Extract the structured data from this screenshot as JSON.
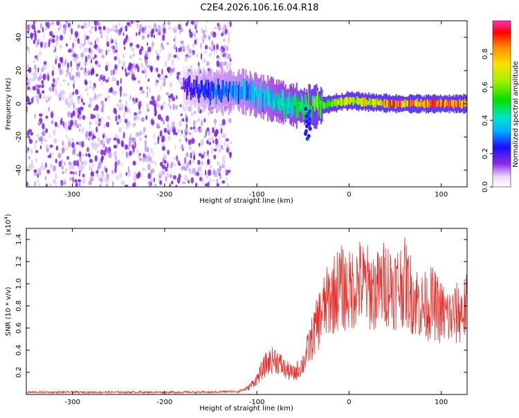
{
  "page_title": "C2E4.2026.106.16.04.R18",
  "colors": {
    "signal_line": "#e8302a",
    "spectrogram_noise": "#7a2be0",
    "axis": "#000000"
  },
  "chart_data": [
    {
      "type": "heatmap",
      "title": "C2E4.2026.106.16.04.R18",
      "xlabel": "Height of straight line (km)",
      "ylabel": "Frequency (Hz)",
      "xlim": [
        -350,
        128
      ],
      "ylim": [
        -50,
        50
      ],
      "xticks": [
        -300,
        -200,
        -100,
        0,
        100
      ],
      "yticks": [
        -40,
        -20,
        0,
        20,
        40
      ],
      "grid": false,
      "description_of_ridge": [
        {
          "height_km": -180,
          "frequency_hz": 10,
          "amplitude": 0.2
        },
        {
          "height_km": -150,
          "frequency_hz": 8,
          "amplitude": 0.3
        },
        {
          "height_km": -120,
          "frequency_hz": 8,
          "amplitude": 0.35
        },
        {
          "height_km": -100,
          "frequency_hz": 5,
          "amplitude": 0.4
        },
        {
          "height_km": -80,
          "frequency_hz": 2,
          "amplitude": 0.45
        },
        {
          "height_km": -60,
          "frequency_hz": -1,
          "amplitude": 0.5
        },
        {
          "height_km": -40,
          "frequency_hz": -2,
          "amplitude": 0.6
        },
        {
          "height_km": -20,
          "frequency_hz": 0,
          "amplitude": 0.65
        },
        {
          "height_km": 0,
          "frequency_hz": 2,
          "amplitude": 0.75
        },
        {
          "height_km": 20,
          "frequency_hz": 1,
          "amplitude": 0.8
        },
        {
          "height_km": 50,
          "frequency_hz": 0,
          "amplitude": 0.95
        },
        {
          "height_km": 80,
          "frequency_hz": 0,
          "amplitude": 0.95
        },
        {
          "height_km": 110,
          "frequency_hz": 0,
          "amplitude": 0.95
        },
        {
          "height_km": 128,
          "frequency_hz": 0,
          "amplitude": 0.9
        }
      ],
      "colorbar": {
        "label": "Normalized spectral amplitude",
        "range": [
          0,
          1
        ],
        "ticks": [
          "0.0",
          "0.2",
          "0.4",
          "0.6",
          "0.8"
        ]
      }
    },
    {
      "type": "line",
      "xlabel": "Height of straight line (km)",
      "ylabel": "SNR (10 * v/v)",
      "yscale_label": "(x10",
      "yscale_exp": "4",
      "yscale_close": ")",
      "xlim": [
        -350,
        128
      ],
      "ylim": [
        0,
        1.5
      ],
      "xticks": [
        -300,
        -200,
        -100,
        0,
        100
      ],
      "yticks": [
        "0.2",
        "0.4",
        "0.6",
        "0.8",
        "1.0",
        "1.2",
        "1.4"
      ],
      "grid": false,
      "series": [
        {
          "name": "SNR",
          "x": [
            -350,
            -300,
            -250,
            -200,
            -150,
            -120,
            -110,
            -100,
            -90,
            -80,
            -70,
            -60,
            -50,
            -40,
            -30,
            -20,
            -10,
            0,
            10,
            20,
            30,
            40,
            50,
            60,
            70,
            80,
            90,
            100,
            110,
            120,
            128
          ],
          "values": [
            0.02,
            0.02,
            0.02,
            0.02,
            0.02,
            0.03,
            0.06,
            0.15,
            0.3,
            0.35,
            0.25,
            0.2,
            0.3,
            0.55,
            0.8,
            0.95,
            1.05,
            1.0,
            1.1,
            1.05,
            1.0,
            1.1,
            1.05,
            1.1,
            0.95,
            0.85,
            0.9,
            0.8,
            0.75,
            0.8,
            0.85
          ]
        }
      ]
    }
  ]
}
